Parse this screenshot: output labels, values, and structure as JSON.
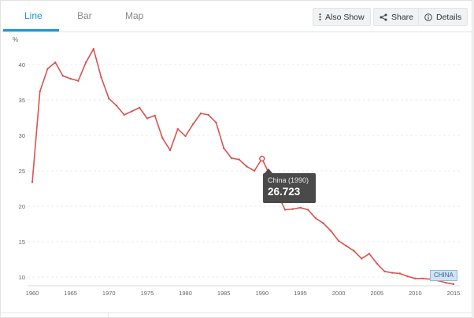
{
  "tabs": [
    {
      "label": "Line",
      "active": true
    },
    {
      "label": "Bar",
      "active": false
    },
    {
      "label": "Map",
      "active": false
    }
  ],
  "actions": {
    "also_show": {
      "label": "Also Show",
      "icon": "vertical-dots-icon"
    },
    "share": {
      "label": "Share",
      "icon": "share-icon"
    },
    "details": {
      "label": "Details",
      "icon": "info-icon"
    }
  },
  "colors": {
    "accent": "#1a9ad6",
    "series": "#d9534f",
    "tooltip_bg": "#4a4a4a",
    "badge_bg": "#cfe3f4"
  },
  "tooltip": {
    "label": "China (1990)",
    "value": "26.723"
  },
  "chart_data": {
    "type": "line",
    "ylabel": "%",
    "xlim": [
      1960,
      2015
    ],
    "ylim": [
      8,
      43
    ],
    "x_ticks": [
      "1960",
      "1965",
      "1970",
      "1975",
      "1980",
      "1985",
      "1990",
      "1995",
      "2000",
      "2005",
      "2010",
      "2015"
    ],
    "y_ticks": [
      "10",
      "15",
      "20",
      "25",
      "30",
      "35",
      "40"
    ],
    "grid": true,
    "series": [
      {
        "name": "CHINA",
        "x": [
          1960,
          1961,
          1962,
          1963,
          1964,
          1965,
          1966,
          1967,
          1968,
          1969,
          1970,
          1971,
          1972,
          1973,
          1974,
          1975,
          1976,
          1977,
          1978,
          1979,
          1980,
          1981,
          1982,
          1983,
          1984,
          1985,
          1986,
          1987,
          1988,
          1989,
          1990,
          1991,
          1992,
          1993,
          1994,
          1995,
          1996,
          1997,
          1998,
          1999,
          2000,
          2001,
          2002,
          2003,
          2004,
          2005,
          2006,
          2007,
          2008,
          2009,
          2010,
          2011,
          2012,
          2013,
          2014,
          2015
        ],
        "y": [
          23.4,
          36.2,
          39.4,
          40.3,
          38.4,
          38.0,
          37.7,
          40.3,
          42.2,
          38.2,
          35.2,
          34.2,
          32.9,
          33.4,
          33.9,
          32.4,
          32.8,
          29.6,
          27.9,
          30.9,
          29.9,
          31.6,
          33.1,
          32.9,
          31.8,
          28.2,
          26.8,
          26.6,
          25.6,
          25.0,
          26.723,
          24.4,
          21.8,
          19.5,
          19.6,
          19.8,
          19.5,
          18.3,
          17.6,
          16.5,
          15.1,
          14.4,
          13.7,
          12.6,
          13.3,
          11.9,
          10.8,
          10.6,
          10.5,
          10.1,
          9.8,
          9.8,
          9.7,
          9.5,
          9.2,
          9.0
        ]
      }
    ],
    "end_label": "CHINA",
    "highlight": {
      "x": 1990,
      "y": 26.723
    }
  }
}
